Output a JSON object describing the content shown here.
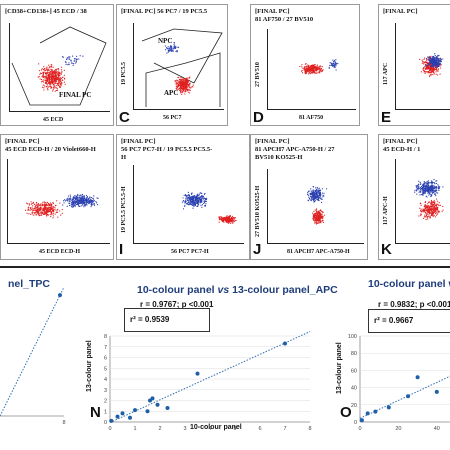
{
  "flow_panels": [
    {
      "id": "B",
      "title": "[CD38+CD138+] 45 ECD / 38",
      "letter": "",
      "xlabel": "45 ECD",
      "ylabel": "",
      "gate": "FINAL PC"
    },
    {
      "id": "C",
      "title": "[FINAL PC] 56 PC7 / 19 PC5.5",
      "letter": "C",
      "xlabel": "56 PC7",
      "ylabel": "19 PC5.5",
      "gates": [
        "NPC",
        "APC"
      ]
    },
    {
      "id": "D",
      "title": "[FINAL PC]\n81 AF750 / 27 BV510",
      "letter": "D",
      "xlabel": "81 AF750",
      "ylabel": "27 BV510"
    },
    {
      "id": "E",
      "title": "[FINAL PC]",
      "letter": "E",
      "xlabel": "",
      "ylabel": "117 APC"
    },
    {
      "id": "H",
      "title": "[FINAL PC]\n45 ECD ECD-H / 20 Violet660-H",
      "letter": "",
      "xlabel": "45 ECD ECD-H",
      "ylabel": ""
    },
    {
      "id": "I",
      "title": "[FINAL PC]\n56 PC7 PC7-H / 19 PC5.5 PC5.5-\nH",
      "letter": "I",
      "xlabel": "56 PC7 PC7-H",
      "ylabel": "19 PC5.5 PC5.5-H"
    },
    {
      "id": "J",
      "title": "[FINAL PC]\n81 APCH7 APC-A750-H / 27\nBV510 KO525-H",
      "letter": "J",
      "xlabel": "81 APCH7 APC-A750-H",
      "ylabel": "27 BV510 KO525-H"
    },
    {
      "id": "K",
      "title": "[FINAL PC]\n45 ECD-H / 1",
      "letter": "K",
      "xlabel": "",
      "ylabel": "117 APC-H"
    }
  ],
  "tick_labels": [
    "10°",
    "10¹",
    "10²"
  ],
  "chart_data": [
    {
      "type": "scatter",
      "title": "nel_TPC",
      "letter": "",
      "x": [
        7.5
      ],
      "y": [
        7.8
      ],
      "xlim": [
        0,
        8
      ],
      "ylim": [
        0,
        8
      ],
      "x_ticks": [
        "8"
      ],
      "trendline": true
    },
    {
      "type": "scatter",
      "letter": "N",
      "title_left": "10-colour panel",
      "title_vs": "vs",
      "title_right": "13-colour panel_APC",
      "r_text": "r  = 0.9767; p <0.001",
      "r2_text": "r² = 0.9539",
      "xlabel": "10-colour panel",
      "ylabel": "13-colour panel",
      "xlim": [
        0,
        8
      ],
      "ylim": [
        0,
        8
      ],
      "x_ticks": [
        "0",
        "1",
        "2",
        "3",
        "4",
        "5",
        "6",
        "7",
        "8"
      ],
      "y_ticks": [
        "0",
        "1",
        "2",
        "3",
        "4",
        "5",
        "6",
        "7",
        "8"
      ],
      "x": [
        0.05,
        0.3,
        0.5,
        0.8,
        1.0,
        1.5,
        1.6,
        1.7,
        1.9,
        2.3,
        3.5,
        7.0
      ],
      "y": [
        0.1,
        0.5,
        0.8,
        0.4,
        1.1,
        1.0,
        2.0,
        2.2,
        1.6,
        1.3,
        4.5,
        7.3
      ],
      "trendline": true
    },
    {
      "type": "scatter",
      "letter": "O",
      "title": "10-colour panel w",
      "r_text": "r  = 0.9832; p <0.001",
      "r2_text": "r² = 0.9667",
      "ylabel": "13-colour panel",
      "xlim": [
        0,
        50
      ],
      "ylim": [
        0,
        100
      ],
      "x_ticks": [
        "0",
        "20",
        "40"
      ],
      "y_ticks": [
        "0",
        "20",
        "40",
        "60",
        "80",
        "100"
      ],
      "x": [
        1,
        4,
        8,
        15,
        25,
        30,
        40
      ],
      "y": [
        2,
        10,
        12,
        17,
        30,
        52,
        35
      ],
      "trendline": true
    }
  ]
}
